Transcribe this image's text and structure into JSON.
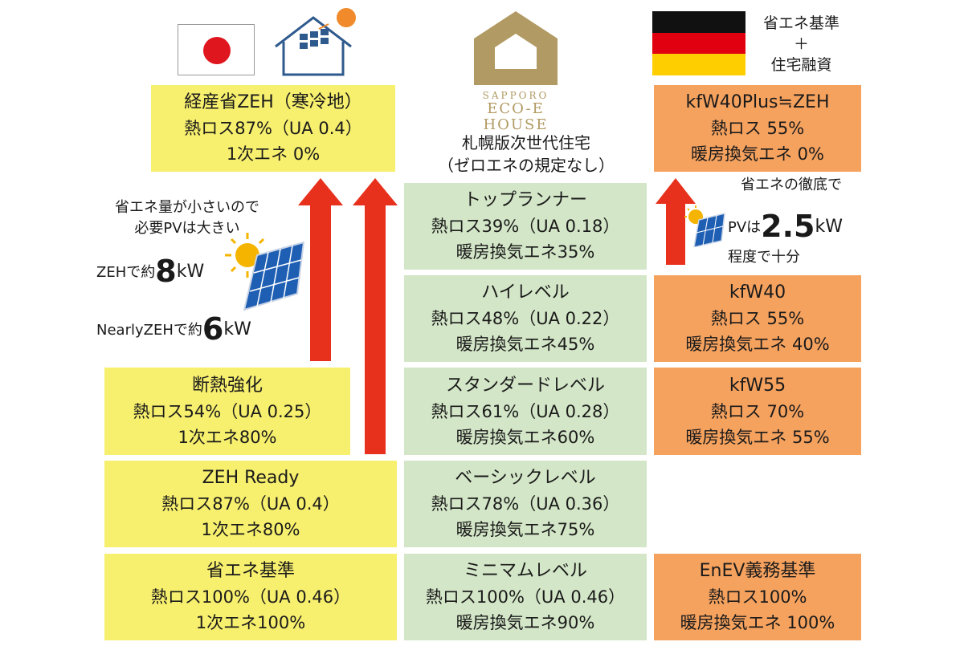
{
  "header": {
    "sapporo_logo": {
      "line1": "SAPPORO",
      "line2": "ECO-E",
      "line3": "HOUSE"
    },
    "sapporo_caption": [
      "札幌版次世代住宅",
      "（ゼロエネの規定なし）"
    ],
    "germany_caption": [
      "省エネ基準",
      "＋",
      "住宅融資"
    ]
  },
  "japan": {
    "zeh_cold": [
      "経産省ZEH（寒冷地）",
      "熱ロス87%（UA 0.4）",
      "1次エネ 0%"
    ],
    "insulation": [
      "断熱強化",
      "熱ロス54%（UA 0.25）",
      "1次エネ80%"
    ],
    "zeh_ready": [
      "ZEH Ready",
      "熱ロス87%（UA 0.4）",
      "1次エネ80%"
    ],
    "standard": [
      "省エネ基準",
      "熱ロス100%（UA 0.46）",
      "1次エネ100%"
    ],
    "note_pv": [
      "省エネ量が小さいので",
      "必要PVは大きい"
    ],
    "zeh_kw": {
      "prefix": "ZEHで約",
      "value": "8",
      "unit": "kW"
    },
    "nearly_kw": {
      "prefix": "NearlyZEHで約",
      "value": "6",
      "unit": "kW"
    }
  },
  "sapporo": {
    "top_runner": [
      "トップランナー",
      "熱ロス39%（UA 0.18）",
      "暖房換気エネ35%"
    ],
    "high": [
      "ハイレベル",
      "熱ロス48%（UA 0.22）",
      "暖房換気エネ45%"
    ],
    "standard": [
      "スタンダードレベル",
      "熱ロス61%（UA 0.28）",
      "暖房換気エネ60%"
    ],
    "basic": [
      "ベーシックレベル",
      "熱ロス78%（UA 0.36）",
      "暖房換気エネ75%"
    ],
    "minimum": [
      "ミニマムレベル",
      "熱ロス100%（UA 0.46）",
      "暖房換気エネ90%"
    ]
  },
  "germany": {
    "kfw40plus": [
      "kfW40Plus≒ZEH",
      "熱ロス 55%",
      "暖房換気エネ 0%"
    ],
    "kfw40": [
      "kfW40",
      "熱ロス 55%",
      "暖房換気エネ 40%"
    ],
    "kfw55": [
      "kfW55",
      "熱ロス 70%",
      "暖房換気エネ 55%"
    ],
    "enev": [
      "EnEV義務基準",
      "熱ロス100%",
      "暖房換気エネ 100%"
    ],
    "note_top": "省エネの徹底で",
    "pv": {
      "prefix": "PVは",
      "value": "2.5",
      "unit": "kW"
    },
    "note_bottom": "程度で十分"
  },
  "colors": {
    "yellow": "#f7ef6e",
    "green": "#d3e6c7",
    "orange": "#f5a25f",
    "arrow": "#e8311c",
    "logo_gold": "#b19a63"
  }
}
